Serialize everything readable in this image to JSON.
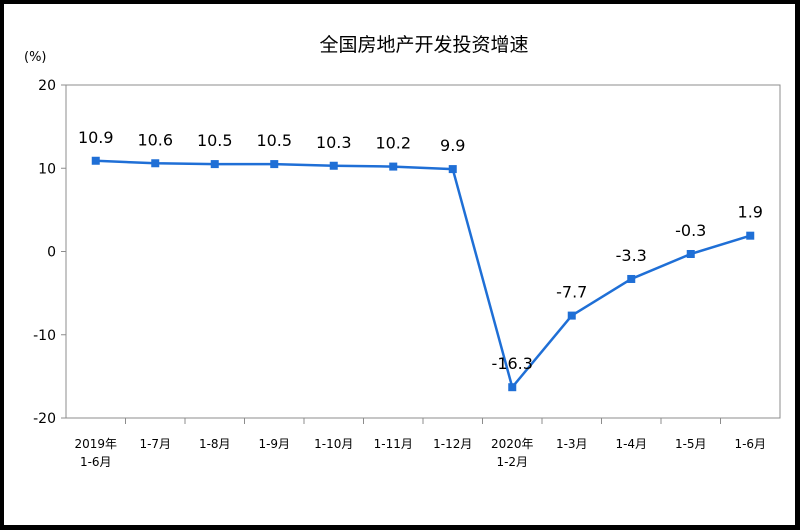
{
  "chart_data": {
    "type": "line",
    "title": "全国房地产开发投资增速",
    "unit_label": "(%)",
    "categories": [
      [
        "2019年",
        "1-6月"
      ],
      [
        "1-7月"
      ],
      [
        "1-8月"
      ],
      [
        "1-9月"
      ],
      [
        "1-10月"
      ],
      [
        "1-11月"
      ],
      [
        "1-12月"
      ],
      [
        "2020年",
        "1-2月"
      ],
      [
        "1-3月"
      ],
      [
        "1-4月"
      ],
      [
        "1-5月"
      ],
      [
        "1-6月"
      ]
    ],
    "values": [
      10.9,
      10.6,
      10.5,
      10.5,
      10.3,
      10.2,
      9.9,
      -16.3,
      -7.7,
      -3.3,
      -0.3,
      1.9
    ],
    "data_labels": [
      "10.9",
      "10.6",
      "10.5",
      "10.5",
      "10.3",
      "10.2",
      "9.9",
      "-16.3",
      "-7.7",
      "-3.3",
      "-0.3",
      "1.9"
    ],
    "yticks": [
      20,
      10,
      0,
      -10,
      -20
    ],
    "ylim": [
      -20,
      20
    ],
    "line_color": "#1f6fd6",
    "grid": false,
    "legend": "none"
  }
}
